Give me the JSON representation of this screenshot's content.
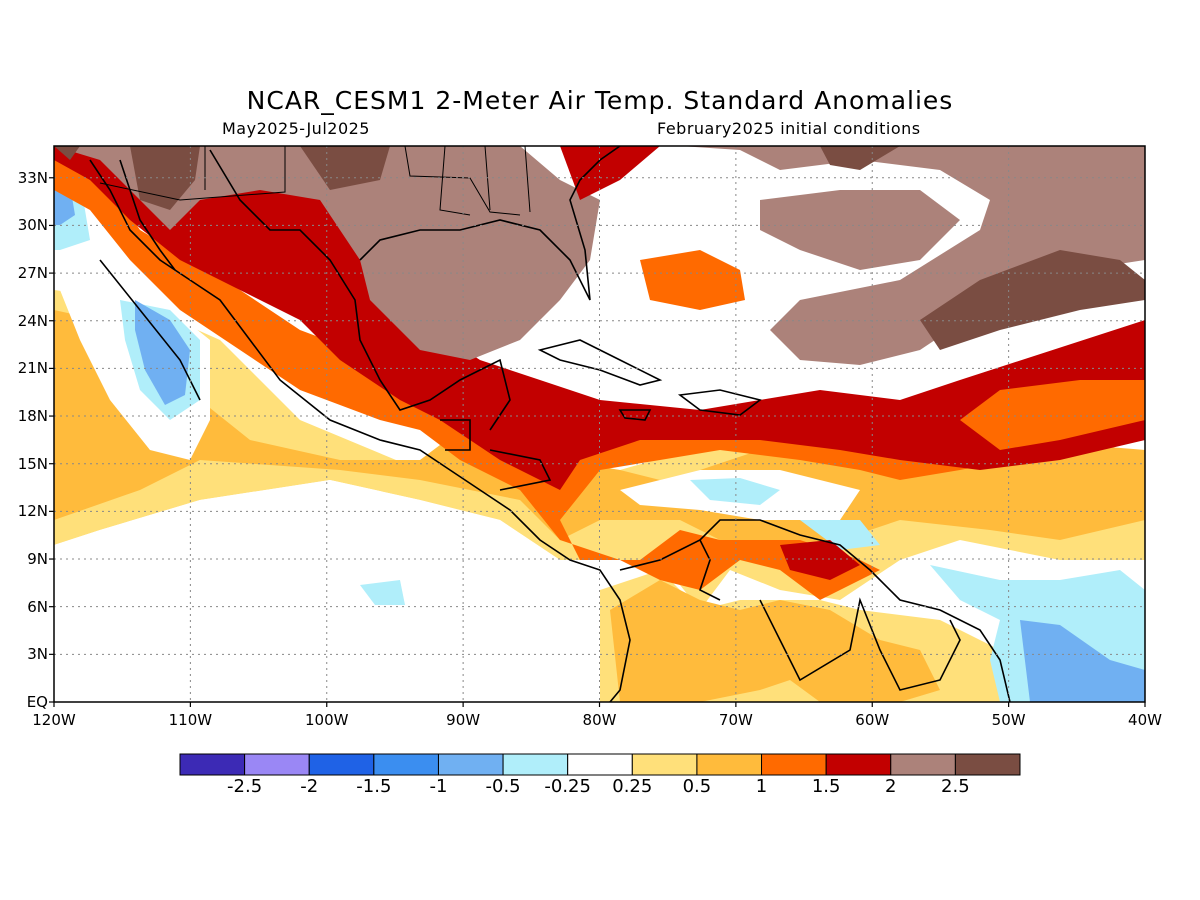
{
  "title": "NCAR_CESM1 2-Meter Air Temp. Standard Anomalies",
  "subtitle_left": "May2025-Jul2025",
  "subtitle_right": "February2025 initial conditions",
  "map": {
    "region": "Caribbean / Gulf of Mexico / Central America",
    "lon_range": [
      -120,
      -40
    ],
    "lat_range": [
      0,
      35
    ],
    "lat_labels": [
      "EQ",
      "3N",
      "6N",
      "9N",
      "12N",
      "15N",
      "18N",
      "21N",
      "24N",
      "27N",
      "30N",
      "33N"
    ],
    "lon_labels": [
      "120W",
      "110W",
      "100W",
      "90W",
      "80W",
      "70W",
      "60W",
      "50W",
      "40W"
    ],
    "grid": "dotted"
  },
  "colorbar": {
    "colors": [
      "#3c2ab5",
      "#9a87f5",
      "#1f62e6",
      "#3b8ef0",
      "#70b0f2",
      "#b0eefa",
      "#ffffff",
      "#ffe07a",
      "#ffbb3c",
      "#ff6a00",
      "#c20000",
      "#ac827a",
      "#7a4d42"
    ],
    "labels": [
      "-2.5",
      "-2",
      "-1.5",
      "-1",
      "-0.5",
      "-0.25",
      "0.25",
      "0.5",
      "1",
      "1.5",
      "2",
      "2.5"
    ]
  }
}
